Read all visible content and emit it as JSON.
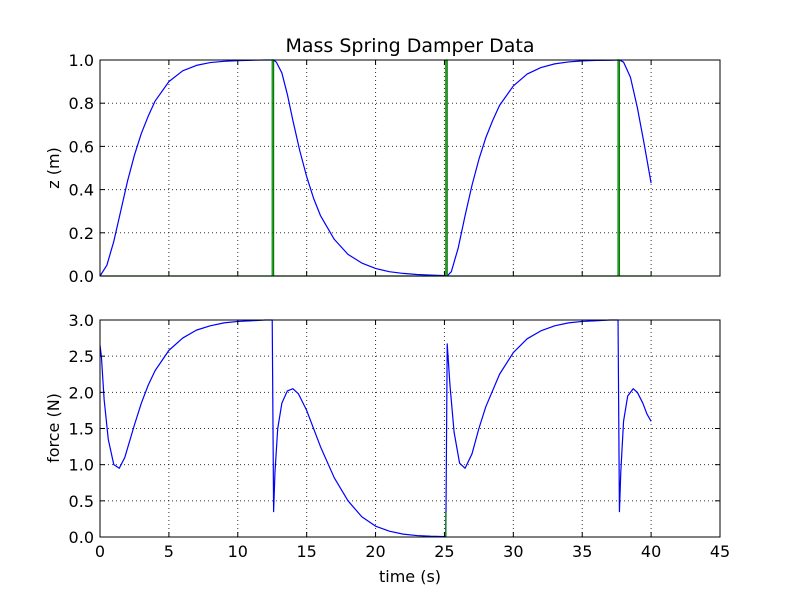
{
  "figure": {
    "background": "#ffffff",
    "line_colors": {
      "blue": "#0000ff",
      "green": "#008000"
    }
  },
  "chart_data": [
    {
      "type": "line",
      "title": "Mass Spring Damper Data",
      "xlabel": "",
      "ylabel": "z (m)",
      "xlim": [
        0,
        45
      ],
      "ylim": [
        0.0,
        1.0
      ],
      "xticks": [
        0,
        5,
        10,
        15,
        20,
        25,
        30,
        35,
        40,
        45
      ],
      "xtick_labels_visible": false,
      "yticks": [
        0.0,
        0.2,
        0.4,
        0.6,
        0.8,
        1.0
      ],
      "ytick_labels": [
        "0.0",
        "0.2",
        "0.4",
        "0.6",
        "0.8",
        "1.0"
      ],
      "grid": true,
      "series": [
        {
          "color": "#0000ff",
          "x": [
            0,
            0.5,
            1,
            1.5,
            2,
            2.5,
            3,
            3.5,
            4,
            5,
            6,
            7,
            8,
            9,
            10,
            11,
            12,
            12.6,
            12.8,
            13.2,
            13.6,
            14,
            14.5,
            15,
            15.5,
            16,
            17,
            18,
            19,
            20,
            21,
            22,
            23,
            24,
            25,
            25.2,
            25.5,
            26,
            26.5,
            27,
            27.5,
            28,
            28.5,
            29,
            30,
            31,
            32,
            33,
            34,
            35,
            36,
            37,
            37.7,
            38,
            38.5,
            39,
            39.5,
            40
          ],
          "y": [
            0,
            0.05,
            0.16,
            0.3,
            0.44,
            0.56,
            0.66,
            0.74,
            0.81,
            0.9,
            0.95,
            0.975,
            0.988,
            0.994,
            0.997,
            0.999,
            1.0,
            1.0,
            0.99,
            0.94,
            0.84,
            0.72,
            0.58,
            0.46,
            0.36,
            0.28,
            0.17,
            0.1,
            0.06,
            0.035,
            0.02,
            0.012,
            0.007,
            0.004,
            0.002,
            0.0,
            0.02,
            0.13,
            0.28,
            0.42,
            0.54,
            0.64,
            0.72,
            0.79,
            0.88,
            0.935,
            0.965,
            0.982,
            0.991,
            0.996,
            0.998,
            0.999,
            1.0,
            0.99,
            0.92,
            0.78,
            0.61,
            0.43
          ]
        },
        {
          "color": "#008000",
          "x": [
            0,
            12.5,
            12.5,
            12.6,
            12.6,
            25.1,
            25.1,
            25.2,
            25.2,
            37.6,
            37.6,
            37.7,
            37.7,
            40
          ],
          "y": [
            0,
            0,
            1.0,
            1.0,
            0.0,
            0.0,
            1.0,
            1.0,
            0.0,
            0.0,
            1.0,
            1.0,
            0.0,
            0.0
          ]
        }
      ]
    },
    {
      "type": "line",
      "title": "",
      "xlabel": "time (s)",
      "ylabel": "force (N)",
      "xlim": [
        0,
        45
      ],
      "ylim": [
        0.0,
        3.0
      ],
      "xticks": [
        0,
        5,
        10,
        15,
        20,
        25,
        30,
        35,
        40,
        45
      ],
      "xtick_labels": [
        "0",
        "5",
        "10",
        "15",
        "20",
        "25",
        "30",
        "35",
        "40",
        "45"
      ],
      "yticks": [
        0.0,
        0.5,
        1.0,
        1.5,
        2.0,
        2.5,
        3.0
      ],
      "ytick_labels": [
        "0.0",
        "0.5",
        "1.0",
        "1.5",
        "2.0",
        "2.5",
        "3.0"
      ],
      "grid": true,
      "series": [
        {
          "color": "#0000ff",
          "x": [
            0,
            0.1,
            0.3,
            0.6,
            1.0,
            1.4,
            1.8,
            2.5,
            3.0,
            3.5,
            4.0,
            5,
            6,
            7,
            8,
            9,
            10,
            11,
            12,
            12.5,
            12.6,
            12.7,
            12.9,
            13.2,
            13.6,
            14.0,
            14.4,
            15,
            16,
            17,
            18,
            19,
            20,
            21,
            22,
            23,
            24,
            25,
            25.1,
            25.2,
            25.4,
            25.7,
            26.1,
            26.5,
            27.0,
            27.5,
            28,
            29,
            30,
            31,
            32,
            33,
            34,
            35,
            36,
            37,
            37.6,
            37.7,
            37.8,
            38.0,
            38.3,
            38.7,
            39.0,
            39.4,
            39.7,
            40
          ],
          "y": [
            2.65,
            2.5,
            1.9,
            1.35,
            1.0,
            0.95,
            1.1,
            1.55,
            1.85,
            2.1,
            2.3,
            2.58,
            2.75,
            2.86,
            2.92,
            2.96,
            2.98,
            2.99,
            3.0,
            3.0,
            0.35,
            0.9,
            1.5,
            1.85,
            2.02,
            2.05,
            1.98,
            1.75,
            1.25,
            0.82,
            0.5,
            0.28,
            0.15,
            0.08,
            0.04,
            0.02,
            0.01,
            0.005,
            0.0,
            2.67,
            2.1,
            1.45,
            1.02,
            0.95,
            1.15,
            1.5,
            1.8,
            2.25,
            2.55,
            2.74,
            2.85,
            2.92,
            2.96,
            2.98,
            2.99,
            3.0,
            3.0,
            0.35,
            0.9,
            1.6,
            1.95,
            2.05,
            2.0,
            1.85,
            1.7,
            1.6
          ]
        },
        {
          "color": "#008000",
          "x": [
            25.1,
            25.1
          ],
          "y": [
            0.0,
            0.35
          ]
        }
      ]
    }
  ]
}
